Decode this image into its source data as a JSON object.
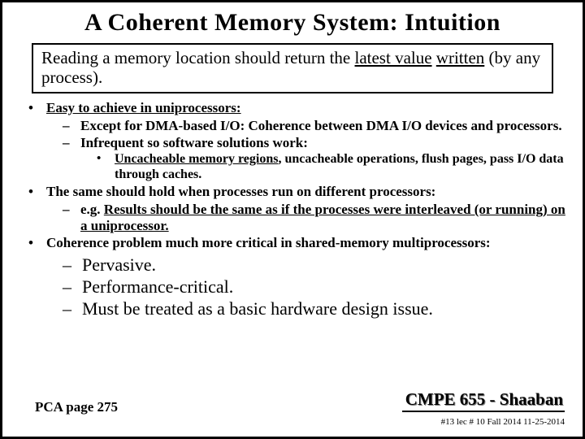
{
  "title": "A Coherent Memory System:  Intuition",
  "intro": {
    "pre": "Reading a memory location should return the ",
    "u1": "latest value",
    "mid": " ",
    "u2": "written",
    "post": " (by any process)."
  },
  "b1": {
    "text": "Easy to achieve in uniprocessors:",
    "s1": "Except for DMA-based I/O:  Coherence between DMA I/O devices and processors.",
    "s2": "Infrequent so software solutions work:",
    "s2a_u": "Uncacheable memory regions",
    "s2a_rest": ", uncacheable operations, flush pages, pass I/O data through caches."
  },
  "b2": {
    "text": "The same should hold when processes run on different processors:",
    "s1_pre": "e.g. ",
    "s1_u": "Results should be the same as if the processes were interleaved (or running) on a uniprocessor."
  },
  "b3": {
    "text": "Coherence problem much more critical in shared-memory multiprocessors:",
    "s1": "Pervasive.",
    "s2": "Performance-critical.",
    "s3": "Must be treated as a basic hardware design issue."
  },
  "footer": {
    "left": "PCA page 275",
    "course": "CMPE 655 - Shaaban",
    "meta": "#13  lec # 10   Fall 2014   11-25-2014"
  }
}
